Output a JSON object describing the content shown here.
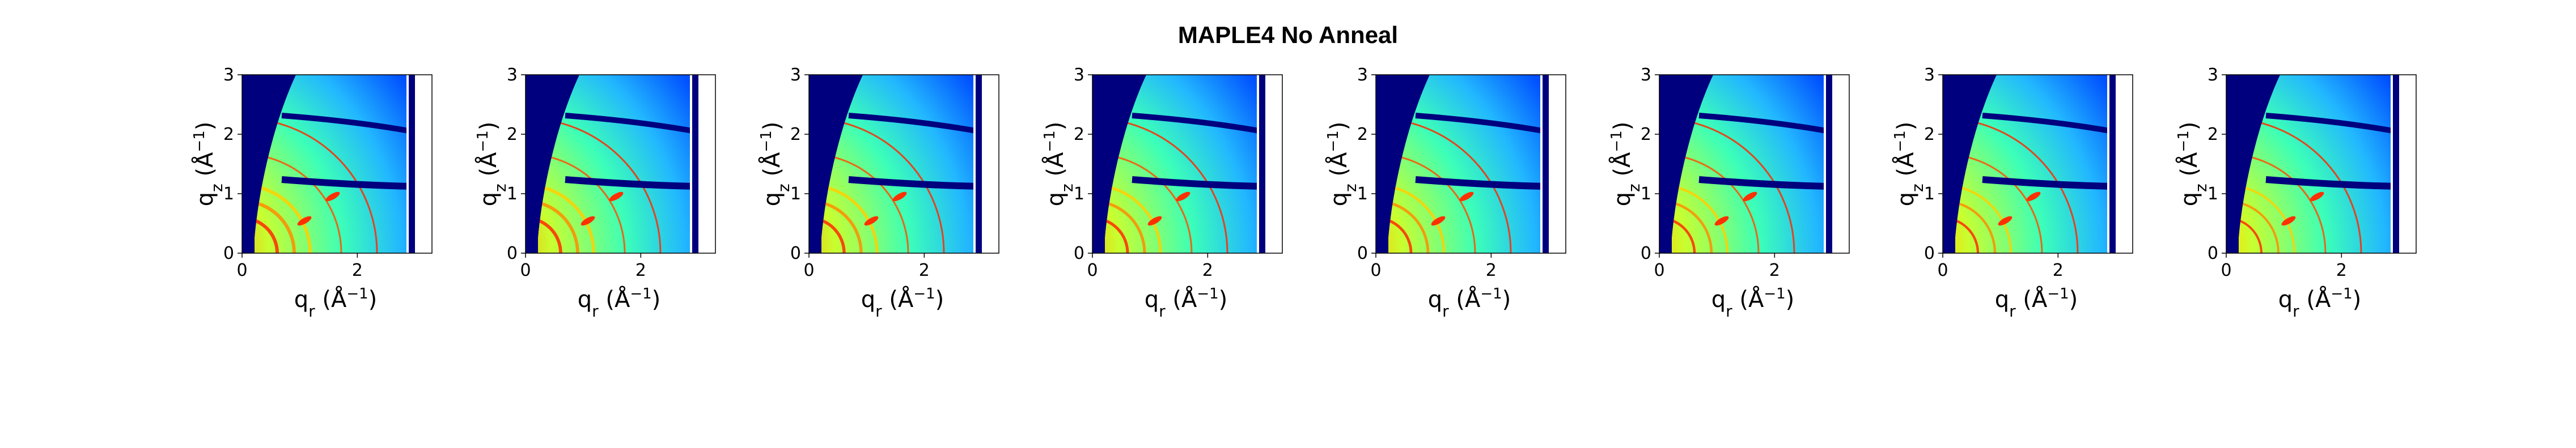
{
  "figure": {
    "title": "MAPLE4 No Anneal"
  },
  "chart_data": {
    "type": "heatmap",
    "title": "MAPLE4 No Anneal",
    "panel_count": 8,
    "xlabel_text": "q_r (Å^-1)",
    "ylabel_text": "q_z (Å^-1)",
    "xlim": [
      0,
      3.0
    ],
    "ylim": [
      0,
      3.0
    ],
    "xticks": [
      "0",
      "2"
    ],
    "yticks": [
      "0",
      "1",
      "2",
      "3"
    ],
    "colormap": "jet",
    "colors": {
      "background": "#00007f",
      "mid": "#3fbfff",
      "high": "#ff3000",
      "frame": "#000000"
    }
  },
  "panels": [
    {
      "x_label_main": "q",
      "x_label_sub": "r",
      "x_label_unit": " (Å",
      "x_label_exp": "−1",
      "x_label_close": ")",
      "y_label_main": "q",
      "y_label_sub": "z",
      "y_label_unit": " (Å",
      "y_label_exp": "−1",
      "y_label_close": ")",
      "xt0": "0",
      "xt1": "2",
      "yt0": "0",
      "yt1": "1",
      "yt2": "2",
      "yt3": "3"
    },
    {
      "x_label_main": "q",
      "x_label_sub": "r",
      "x_label_unit": " (Å",
      "x_label_exp": "−1",
      "x_label_close": ")",
      "y_label_main": "q",
      "y_label_sub": "z",
      "y_label_unit": " (Å",
      "y_label_exp": "−1",
      "y_label_close": ")",
      "xt0": "0",
      "xt1": "2",
      "yt0": "0",
      "yt1": "1",
      "yt2": "2",
      "yt3": "3"
    },
    {
      "x_label_main": "q",
      "x_label_sub": "r",
      "x_label_unit": " (Å",
      "x_label_exp": "−1",
      "x_label_close": ")",
      "y_label_main": "q",
      "y_label_sub": "z",
      "y_label_unit": " (Å",
      "y_label_exp": "−1",
      "y_label_close": ")",
      "xt0": "0",
      "xt1": "2",
      "yt0": "0",
      "yt1": "1",
      "yt2": "2",
      "yt3": "3"
    },
    {
      "x_label_main": "q",
      "x_label_sub": "r",
      "x_label_unit": " (Å",
      "x_label_exp": "−1",
      "x_label_close": ")",
      "y_label_main": "q",
      "y_label_sub": "z",
      "y_label_unit": " (Å",
      "y_label_exp": "−1",
      "y_label_close": ")",
      "xt0": "0",
      "xt1": "2",
      "yt0": "0",
      "yt1": "1",
      "yt2": "2",
      "yt3": "3"
    },
    {
      "x_label_main": "q",
      "x_label_sub": "r",
      "x_label_unit": " (Å",
      "x_label_exp": "−1",
      "x_label_close": ")",
      "y_label_main": "q",
      "y_label_sub": "z",
      "y_label_unit": " (Å",
      "y_label_exp": "−1",
      "y_label_close": ")",
      "xt0": "0",
      "xt1": "2",
      "yt0": "0",
      "yt1": "1",
      "yt2": "2",
      "yt3": "3"
    },
    {
      "x_label_main": "q",
      "x_label_sub": "r",
      "x_label_unit": " (Å",
      "x_label_exp": "−1",
      "x_label_close": ")",
      "y_label_main": "q",
      "y_label_sub": "z",
      "y_label_unit": " (Å",
      "y_label_exp": "−1",
      "y_label_close": ")",
      "xt0": "0",
      "xt1": "2",
      "yt0": "0",
      "yt1": "1",
      "yt2": "2",
      "yt3": "3"
    },
    {
      "x_label_main": "q",
      "x_label_sub": "r",
      "x_label_unit": " (Å",
      "x_label_exp": "−1",
      "x_label_close": ")",
      "y_label_main": "q",
      "y_label_sub": "z",
      "y_label_unit": " (Å",
      "y_label_exp": "−1",
      "y_label_close": ")",
      "xt0": "0",
      "xt1": "2",
      "yt0": "0",
      "yt1": "1",
      "yt2": "2",
      "yt3": "3"
    },
    {
      "x_label_main": "q",
      "x_label_sub": "r",
      "x_label_unit": " (Å",
      "x_label_exp": "−1",
      "x_label_close": ")",
      "y_label_main": "q",
      "y_label_sub": "z",
      "y_label_unit": " (Å",
      "y_label_exp": "−1",
      "y_label_close": ")",
      "xt0": "0",
      "xt1": "2",
      "yt0": "0",
      "yt1": "1",
      "yt2": "2",
      "yt3": "3"
    }
  ]
}
